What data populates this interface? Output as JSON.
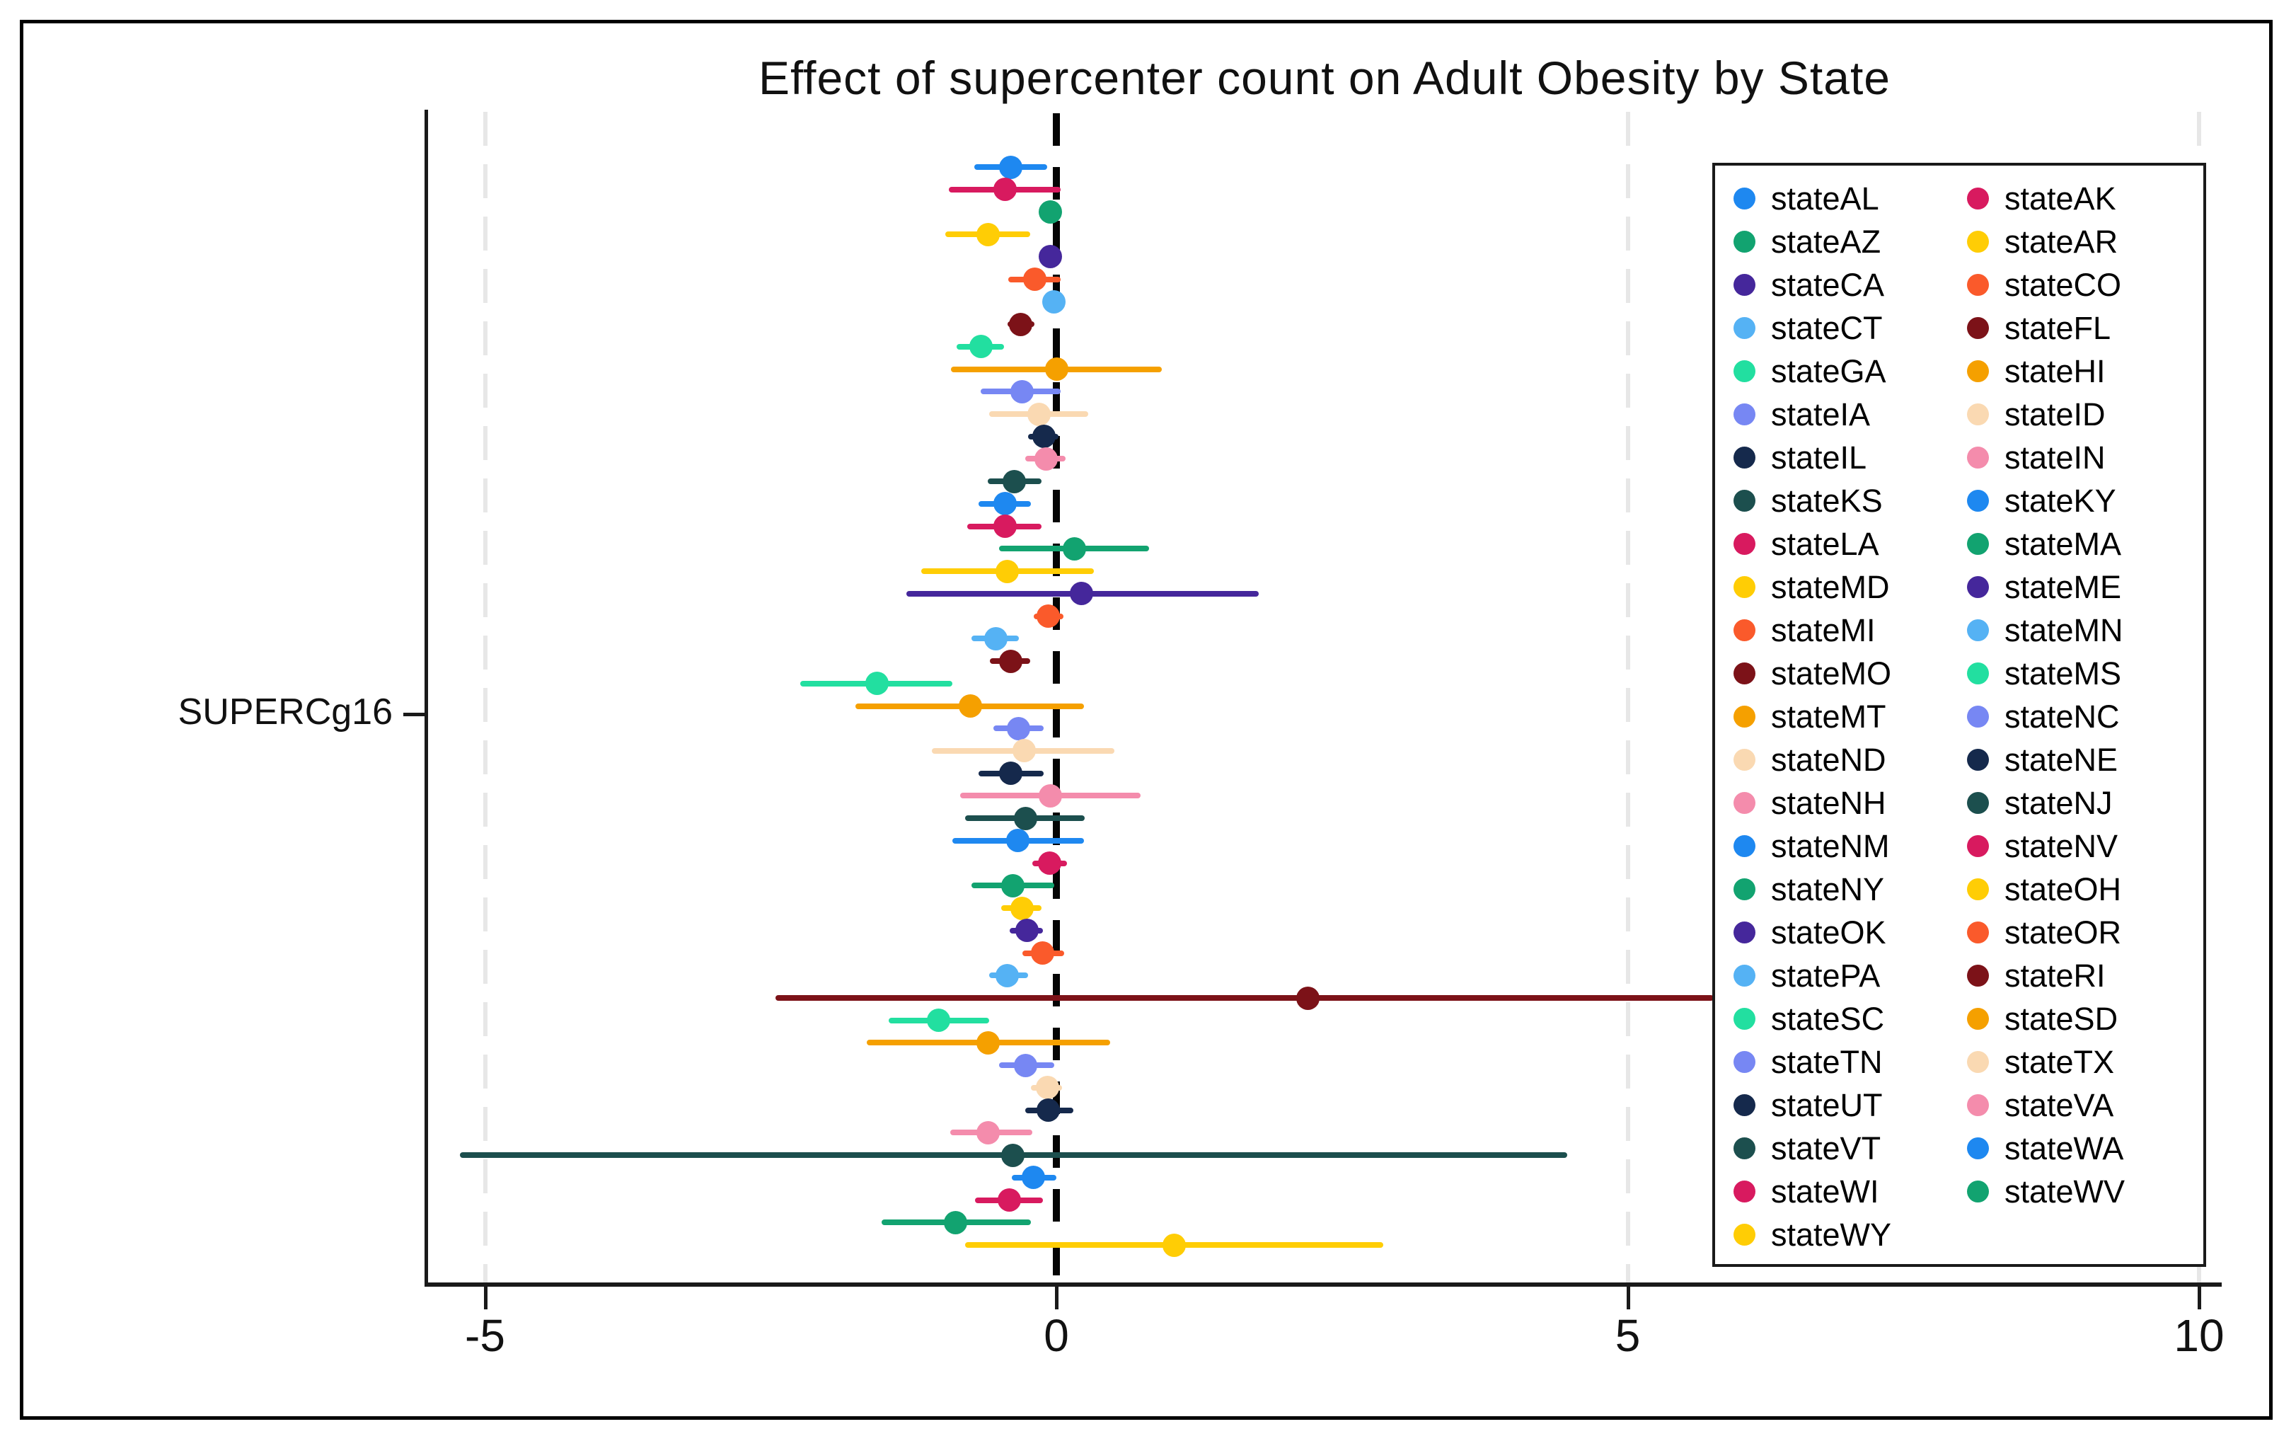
{
  "chart_data": {
    "type": "scatter",
    "subtype": "forest-coefficient-plot",
    "title": "Effect of supercenter count on Adult Obesity by State",
    "xlabel": "",
    "y_tick_label": "SUPERCg16",
    "xlim": [
      -5.5,
      10.4
    ],
    "x_ticks": [
      -5,
      0,
      5,
      10
    ],
    "x_tick_labels": [
      "-5",
      "0",
      "5",
      "10"
    ],
    "grid": "light-gray dashed vertical gridlines at -5, 5, 10; black dashed reference line at 0",
    "legend_position": "right, inside plot, two columns",
    "palette": {
      "blue": "#1E88F0",
      "crimson": "#D81A5F",
      "emerald": "#12A370",
      "gold": "#FFCD05",
      "indigo": "#45279B",
      "orangered": "#FA5A2B",
      "lightblue": "#55B2F4",
      "maroon": "#7C1218",
      "springgreen": "#22DFA0",
      "orange": "#F5A000",
      "periwinkle": "#7787F3",
      "peach": "#FAD9B2",
      "navy": "#15294C",
      "pink": "#F48CAC",
      "teal": "#1C4F4E"
    },
    "series": [
      {
        "label": "stateAL",
        "color": "#1E88F0",
        "estimate": -0.4,
        "ci_low": -0.72,
        "ci_high": -0.08
      },
      {
        "label": "stateAK",
        "color": "#D81A5F",
        "estimate": -0.45,
        "ci_low": -0.94,
        "ci_high": 0.04
      },
      {
        "label": "stateAZ",
        "color": "#12A370",
        "estimate": -0.05,
        "ci_low": -0.14,
        "ci_high": 0.04
      },
      {
        "label": "stateAR",
        "color": "#FFCD05",
        "estimate": -0.6,
        "ci_low": -0.97,
        "ci_high": -0.23
      },
      {
        "label": "stateCA",
        "color": "#45279B",
        "estimate": -0.05,
        "ci_low": -0.13,
        "ci_high": 0.03
      },
      {
        "label": "stateCO",
        "color": "#FA5A2B",
        "estimate": -0.19,
        "ci_low": -0.42,
        "ci_high": 0.04
      },
      {
        "label": "stateCT",
        "color": "#55B2F4",
        "estimate": -0.02,
        "ci_low": -0.09,
        "ci_high": 0.05
      },
      {
        "label": "stateFL",
        "color": "#7C1218",
        "estimate": -0.31,
        "ci_low": -0.43,
        "ci_high": -0.19
      },
      {
        "label": "stateGA",
        "color": "#22DFA0",
        "estimate": -0.66,
        "ci_low": -0.87,
        "ci_high": -0.46
      },
      {
        "label": "stateHI",
        "color": "#F5A000",
        "estimate": 0.0,
        "ci_low": -0.92,
        "ci_high": 0.92
      },
      {
        "label": "stateIA",
        "color": "#7787F3",
        "estimate": -0.3,
        "ci_low": -0.66,
        "ci_high": 0.04
      },
      {
        "label": "stateID",
        "color": "#FAD9B2",
        "estimate": -0.15,
        "ci_low": -0.59,
        "ci_high": 0.28
      },
      {
        "label": "stateIL",
        "color": "#15294C",
        "estimate": -0.11,
        "ci_low": -0.25,
        "ci_high": 0.02
      },
      {
        "label": "stateIN",
        "color": "#F48CAC",
        "estimate": -0.09,
        "ci_low": -0.27,
        "ci_high": 0.08
      },
      {
        "label": "stateKS",
        "color": "#1C4F4E",
        "estimate": -0.37,
        "ci_low": -0.6,
        "ci_high": -0.13
      },
      {
        "label": "stateKY",
        "color": "#1E88F0",
        "estimate": -0.45,
        "ci_low": -0.68,
        "ci_high": -0.22
      },
      {
        "label": "stateLA",
        "color": "#D81A5F",
        "estimate": -0.45,
        "ci_low": -0.78,
        "ci_high": -0.13
      },
      {
        "label": "stateMA",
        "color": "#12A370",
        "estimate": 0.16,
        "ci_low": -0.5,
        "ci_high": 0.81
      },
      {
        "label": "stateMD",
        "color": "#FFCD05",
        "estimate": -0.43,
        "ci_low": -1.18,
        "ci_high": 0.33
      },
      {
        "label": "stateME",
        "color": "#45279B",
        "estimate": 0.22,
        "ci_low": -1.31,
        "ci_high": 1.77
      },
      {
        "label": "stateMI",
        "color": "#FA5A2B",
        "estimate": -0.07,
        "ci_low": -0.2,
        "ci_high": 0.06
      },
      {
        "label": "stateMN",
        "color": "#55B2F4",
        "estimate": -0.53,
        "ci_low": -0.74,
        "ci_high": -0.33
      },
      {
        "label": "stateMO",
        "color": "#7C1218",
        "estimate": -0.4,
        "ci_low": -0.58,
        "ci_high": -0.23
      },
      {
        "label": "stateMS",
        "color": "#22DFA0",
        "estimate": -1.57,
        "ci_low": -2.24,
        "ci_high": -0.91
      },
      {
        "label": "stateMT",
        "color": "#F5A000",
        "estimate": -0.75,
        "ci_low": -1.76,
        "ci_high": 0.24
      },
      {
        "label": "stateNC",
        "color": "#7787F3",
        "estimate": -0.33,
        "ci_low": -0.55,
        "ci_high": -0.11
      },
      {
        "label": "stateND",
        "color": "#FAD9B2",
        "estimate": -0.28,
        "ci_low": -1.09,
        "ci_high": 0.51
      },
      {
        "label": "stateNE",
        "color": "#15294C",
        "estimate": -0.4,
        "ci_low": -0.68,
        "ci_high": -0.11
      },
      {
        "label": "stateNH",
        "color": "#F48CAC",
        "estimate": -0.05,
        "ci_low": -0.84,
        "ci_high": 0.74
      },
      {
        "label": "stateNJ",
        "color": "#1C4F4E",
        "estimate": -0.27,
        "ci_low": -0.8,
        "ci_high": 0.25
      },
      {
        "label": "stateNM",
        "color": "#1E88F0",
        "estimate": -0.34,
        "ci_low": -0.91,
        "ci_high": 0.24
      },
      {
        "label": "stateNV",
        "color": "#D81A5F",
        "estimate": -0.06,
        "ci_low": -0.21,
        "ci_high": 0.09
      },
      {
        "label": "stateNY",
        "color": "#12A370",
        "estimate": -0.38,
        "ci_low": -0.74,
        "ci_high": -0.02
      },
      {
        "label": "stateOH",
        "color": "#FFCD05",
        "estimate": -0.3,
        "ci_low": -0.48,
        "ci_high": -0.13
      },
      {
        "label": "stateOK",
        "color": "#45279B",
        "estimate": -0.26,
        "ci_low": -0.41,
        "ci_high": -0.12
      },
      {
        "label": "stateOR",
        "color": "#FA5A2B",
        "estimate": -0.12,
        "ci_low": -0.3,
        "ci_high": 0.07
      },
      {
        "label": "statePA",
        "color": "#55B2F4",
        "estimate": -0.43,
        "ci_low": -0.59,
        "ci_high": -0.25
      },
      {
        "label": "stateRI",
        "color": "#7C1218",
        "estimate": 2.2,
        "ci_low": -2.46,
        "ci_high": 5.75,
        "ci_high_clipped_by_legend": true
      },
      {
        "label": "stateSC",
        "color": "#22DFA0",
        "estimate": -1.03,
        "ci_low": -1.47,
        "ci_high": -0.59
      },
      {
        "label": "stateSD",
        "color": "#F5A000",
        "estimate": -0.6,
        "ci_low": -1.66,
        "ci_high": 0.47
      },
      {
        "label": "stateTN",
        "color": "#7787F3",
        "estimate": -0.27,
        "ci_low": -0.5,
        "ci_high": -0.02
      },
      {
        "label": "stateTX",
        "color": "#FAD9B2",
        "estimate": -0.08,
        "ci_low": -0.22,
        "ci_high": 0.05
      },
      {
        "label": "stateUT",
        "color": "#15294C",
        "estimate": -0.07,
        "ci_low": -0.27,
        "ci_high": 0.15
      },
      {
        "label": "stateVA",
        "color": "#F48CAC",
        "estimate": -0.6,
        "ci_low": -0.93,
        "ci_high": -0.21
      },
      {
        "label": "stateVT",
        "color": "#1C4F4E",
        "estimate": -0.38,
        "ci_low": -5.22,
        "ci_high": 4.47
      },
      {
        "label": "stateWA",
        "color": "#1E88F0",
        "estimate": -0.2,
        "ci_low": -0.39,
        "ci_high": 0.0
      },
      {
        "label": "stateWI",
        "color": "#D81A5F",
        "estimate": -0.41,
        "ci_low": -0.71,
        "ci_high": -0.12
      },
      {
        "label": "stateWV",
        "color": "#12A370",
        "estimate": -0.88,
        "ci_low": -1.53,
        "ci_high": -0.22
      },
      {
        "label": "stateWY",
        "color": "#FFCD05",
        "estimate": 1.03,
        "ci_low": -0.8,
        "ci_high": 2.86
      }
    ],
    "legend_order": [
      "stateAL",
      "stateAK",
      "stateAZ",
      "stateAR",
      "stateCA",
      "stateCO",
      "stateCT",
      "stateFL",
      "stateGA",
      "stateHI",
      "stateIA",
      "stateID",
      "stateIL",
      "stateIN",
      "stateKS",
      "stateKY",
      "stateLA",
      "stateMA",
      "stateMD",
      "stateME",
      "stateMI",
      "stateMN",
      "stateMO",
      "stateMS",
      "stateMT",
      "stateNC",
      "stateND",
      "stateNE",
      "stateNH",
      "stateNJ",
      "stateNM",
      "stateNV",
      "stateNY",
      "stateOH",
      "stateOK",
      "stateOR",
      "statePA",
      "stateRI",
      "stateSC",
      "stateSD",
      "stateTN",
      "stateTX",
      "stateUT",
      "stateVA",
      "stateVT",
      "stateWA",
      "stateWI",
      "stateWV",
      "stateWY"
    ]
  }
}
